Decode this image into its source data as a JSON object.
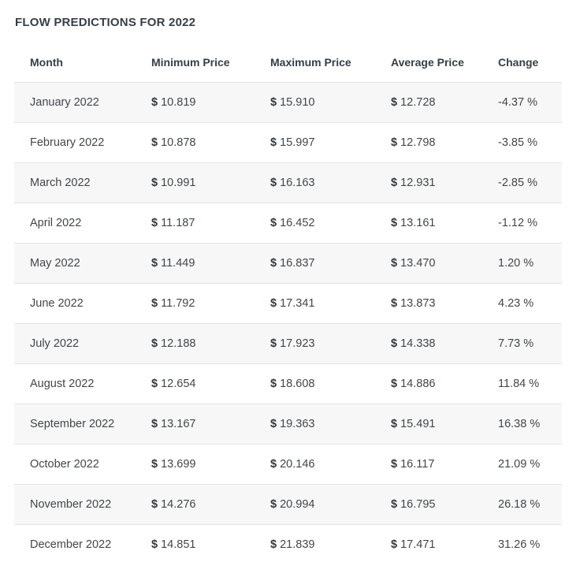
{
  "page": {
    "title": "FLOW PREDICTIONS FOR 2022"
  },
  "chart_data": {
    "type": "table",
    "title": "FLOW PREDICTIONS FOR 2022",
    "columns": [
      "Month",
      "Minimum Price",
      "Maximum Price",
      "Average Price",
      "Change"
    ],
    "rows": [
      [
        "January 2022",
        "$ 10.819",
        "$ 15.910",
        "$ 12.728",
        "-4.37 %"
      ],
      [
        "February 2022",
        "$ 10.878",
        "$ 15.997",
        "$ 12.798",
        "-3.85 %"
      ],
      [
        "March 2022",
        "$ 10.991",
        "$ 16.163",
        "$ 12.931",
        "-2.85 %"
      ],
      [
        "April 2022",
        "$ 11.187",
        "$ 16.452",
        "$ 13.161",
        "-1.12 %"
      ],
      [
        "May 2022",
        "$ 11.449",
        "$ 16.837",
        "$ 13.470",
        "1.20 %"
      ],
      [
        "June 2022",
        "$ 11.792",
        "$ 17.341",
        "$ 13.873",
        "4.23 %"
      ],
      [
        "July 2022",
        "$ 12.188",
        "$ 17.923",
        "$ 14.338",
        "7.73 %"
      ],
      [
        "August 2022",
        "$ 12.654",
        "$ 18.608",
        "$ 14.886",
        "11.84 %"
      ],
      [
        "September 2022",
        "$ 13.167",
        "$ 19.363",
        "$ 15.491",
        "16.38 %"
      ],
      [
        "October 2022",
        "$ 13.699",
        "$ 20.146",
        "$ 16.117",
        "21.09 %"
      ],
      [
        "November 2022",
        "$ 14.276",
        "$ 20.994",
        "$ 16.795",
        "26.18 %"
      ],
      [
        "December 2022",
        "$ 14.851",
        "$ 21.839",
        "$ 17.471",
        "31.26 %"
      ]
    ],
    "currency_symbol": "$",
    "layout": {
      "striped_rows": "odd",
      "header_position": "top",
      "grid": "horizontal-only"
    }
  },
  "colors": {
    "stripe": "#f7f7f7",
    "border": "#e3e3e3",
    "heading_text": "#363e47",
    "body_text": "#41464c",
    "currency_text": "#343a42",
    "background": "#ffffff"
  }
}
